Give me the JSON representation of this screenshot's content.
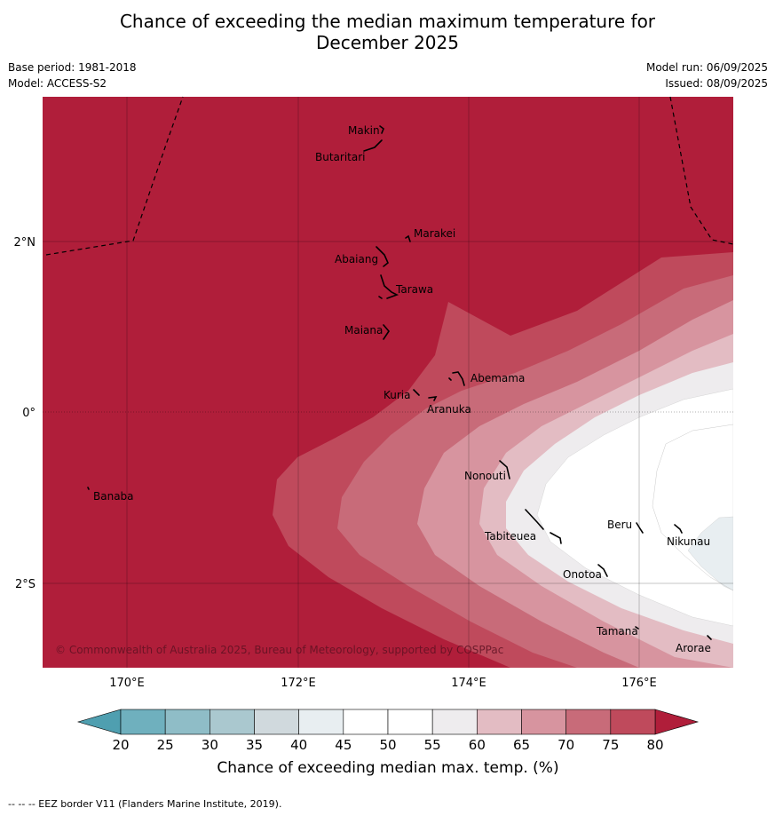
{
  "title_line1": "Chance of exceeding the median maximum temperature for",
  "title_line2": "December 2025",
  "base_period": "Base period: 1981-2018",
  "model": "Model: ACCESS-S2",
  "model_run": "Model run: 06/09/2025",
  "issued": "Issued: 08/09/2025",
  "copyright": "© Commonwealth of Australia 2025, Bureau of Meteorology, supported by COSPPac",
  "footer": "--  --  -- EEZ border V11 (Flanders Marine Institute, 2019).",
  "axes": {
    "lon_ticks": [
      "170°E",
      "172°E",
      "174°E",
      "176°E"
    ],
    "lat_ticks": [
      "2°N",
      "0°",
      "2°S"
    ]
  },
  "places": [
    "Makin",
    "Butaritari",
    "Marakei",
    "Abaiang",
    "Tarawa",
    "Maiana",
    "Abemama",
    "Kuria",
    "Aranuka",
    "Banaba",
    "Nonouti",
    "Tabiteuea",
    "Beru",
    "Nikunau",
    "Onotoa",
    "Tamana",
    "Arorae"
  ],
  "colorbar": {
    "ticks": [
      "20",
      "25",
      "30",
      "35",
      "40",
      "45",
      "50",
      "55",
      "60",
      "65",
      "70",
      "75",
      "80"
    ],
    "colors": [
      "#6fb0be",
      "#8fbdc7",
      "#aac8cf",
      "#d0d9dd",
      "#e8eef1",
      "#ffffff",
      "#ffffff",
      "#eeecee",
      "#e3bcc3",
      "#d7949f",
      "#c86b79",
      "#bf4a5c"
    ],
    "low_color": "#4f9fb0",
    "high_color": "#b01e3a",
    "label": "Chance of exceeding median max. temp. (%)"
  }
}
